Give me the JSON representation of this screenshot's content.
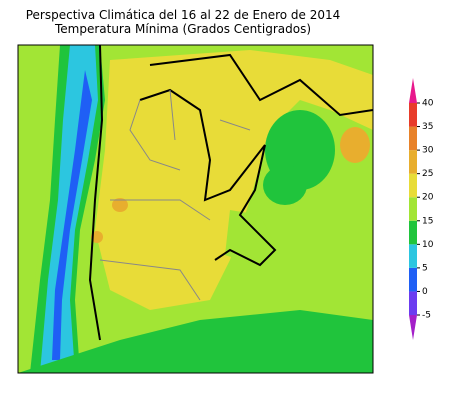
{
  "title": "Perspectiva Climática del 16 al 22 de Enero de 2014",
  "subtitle": "Temperatura Mínima (Grados Centigrados)",
  "colorbar": {
    "ticks": [
      -5,
      0,
      5,
      10,
      15,
      20,
      25,
      30,
      35,
      40
    ],
    "colors": [
      "#a41fc9",
      "#6b3cf0",
      "#1f5ff5",
      "#2cc6e0",
      "#20c43c",
      "#a2e535",
      "#e8dc38",
      "#e8ae2e",
      "#e8822a",
      "#e83c2a",
      "#e8198c"
    ]
  }
}
